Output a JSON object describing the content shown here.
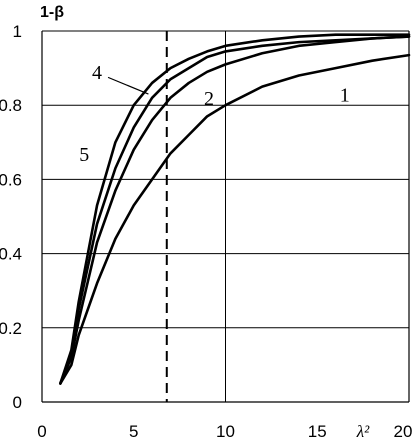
{
  "chart_data": {
    "type": "line",
    "xlabel": "λ²",
    "ylabel": "1-β",
    "xlim": [
      0,
      20
    ],
    "ylim": [
      0,
      1
    ],
    "x_ticks": [
      "0",
      "5",
      "10",
      "15",
      "20"
    ],
    "y_ticks": [
      "0",
      "0.2",
      "0.4",
      "0.6",
      "0.8",
      "1"
    ],
    "grid": "horizontal lines at y ticks, vertical line at x = 10",
    "reference_line": {
      "x": 6.8,
      "style": "dashed"
    },
    "series": [
      {
        "name": "1",
        "x": [
          1,
          1.6,
          2,
          3,
          4,
          5,
          6,
          7,
          8,
          9,
          10,
          12,
          14,
          16,
          18,
          20
        ],
        "y": [
          0.05,
          0.1,
          0.18,
          0.32,
          0.44,
          0.53,
          0.6,
          0.67,
          0.72,
          0.77,
          0.8,
          0.85,
          0.88,
          0.9,
          0.92,
          0.935
        ]
      },
      {
        "name": "2",
        "x": [
          1,
          1.6,
          2,
          3,
          4,
          5,
          6,
          7,
          8,
          9,
          10,
          12,
          14,
          16,
          18,
          20
        ],
        "y": [
          0.05,
          0.12,
          0.22,
          0.43,
          0.57,
          0.68,
          0.76,
          0.82,
          0.86,
          0.89,
          0.91,
          0.94,
          0.96,
          0.97,
          0.98,
          0.985
        ]
      },
      {
        "name": "4",
        "x": [
          1,
          1.6,
          2,
          3,
          4,
          5,
          6,
          7,
          8,
          9,
          10,
          12,
          14,
          16,
          18,
          20
        ],
        "y": [
          0.05,
          0.13,
          0.25,
          0.48,
          0.63,
          0.74,
          0.82,
          0.87,
          0.9,
          0.93,
          0.945,
          0.96,
          0.97,
          0.975,
          0.98,
          0.985
        ]
      },
      {
        "name": "5",
        "x": [
          1,
          1.6,
          2,
          3,
          4,
          5,
          6,
          7,
          8,
          9,
          10,
          12,
          14,
          16,
          18,
          20
        ],
        "y": [
          0.05,
          0.14,
          0.27,
          0.53,
          0.7,
          0.8,
          0.86,
          0.9,
          0.925,
          0.945,
          0.96,
          0.975,
          0.985,
          0.99,
          0.99,
          0.99
        ]
      }
    ],
    "curve_labels": [
      {
        "text": "1",
        "x": 16.5,
        "y": 0.81
      },
      {
        "text": "2",
        "x": 9.1,
        "y": 0.8
      },
      {
        "text": "4",
        "x": 3.0,
        "y": 0.87
      },
      {
        "text": "5",
        "x": 2.3,
        "y": 0.65
      }
    ],
    "label_pointer": {
      "from": {
        "x": 3.6,
        "y": 0.875
      },
      "to": {
        "x": 5.8,
        "y": 0.83
      }
    }
  }
}
